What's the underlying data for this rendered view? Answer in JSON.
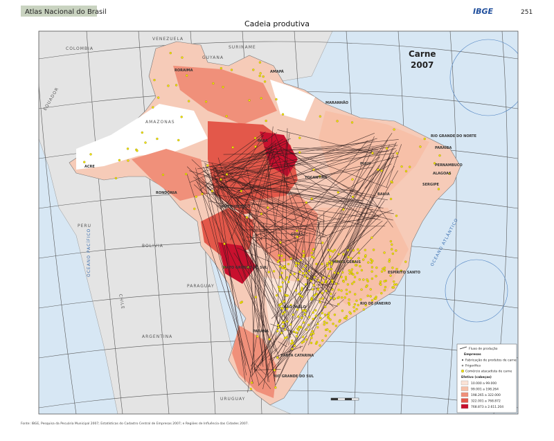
{
  "header": {
    "atlas": "Atlas Nacional do Brasil",
    "publisher": "IBGE",
    "page": "251"
  },
  "title": "Cadeia produtiva",
  "map": {
    "theme": "Carne",
    "year": "2007",
    "countries": [
      "COLOMBIA",
      "VENEZUELA",
      "GUYANA",
      "SURINAME",
      "EQUADOR",
      "PERU",
      "BOLIVIA",
      "PARAGUAY",
      "ARGENTINA",
      "CHILE",
      "URUGUAY"
    ],
    "oceans": [
      "OCEANO PACÍFICO",
      "OCEANO ATLÂNTICO"
    ],
    "states": [
      "RORAIMA",
      "AMAPÁ",
      "AMAZONAS",
      "PARÁ",
      "MARANHÃO",
      "PIAUÍ",
      "ACRE",
      "RONDÔNIA",
      "MATO GROSSO",
      "BAHIA",
      "GOIÁS",
      "MINAS GERAIS",
      "ESPÍRITO SANTO",
      "SANTA CATARINA",
      "RIO GRANDE DO SUL",
      "RIO GRANDE DO NORTE",
      "PARAÍBA",
      "PERNAMBUCO",
      "ALAGOAS",
      "SERGIPE",
      "TOCANTINS",
      "MATO GROSSO DO SUL",
      "SÃO PAULO",
      "PARANÁ",
      "RIO DE JANEIRO"
    ]
  },
  "legend": {
    "items": [
      "Fluxo de produção",
      "Empresas",
      "Fabricação de produtos de carne",
      "Frigorífico",
      "Comércio atacadista de carne"
    ],
    "scale_title": "Efetivo (cabeças)",
    "classes": [
      {
        "label": "10.000 a 99.000",
        "color": "#fbe3d6"
      },
      {
        "label": "99.001 a 198.264",
        "color": "#f7c0a8"
      },
      {
        "label": "198.265 a 322.000",
        "color": "#f0907a"
      },
      {
        "label": "322.001 a 768.872",
        "color": "#e3584a"
      },
      {
        "label": "768.873 a 2.611.204",
        "color": "#c8102e"
      }
    ]
  },
  "source": "Fonte: IBGE, Pesquisa da Pecuária Municipal 2007; Estatísticas do Cadastro Central de Empresas 2007; e Regiões de Influência das Cidades 2007."
}
